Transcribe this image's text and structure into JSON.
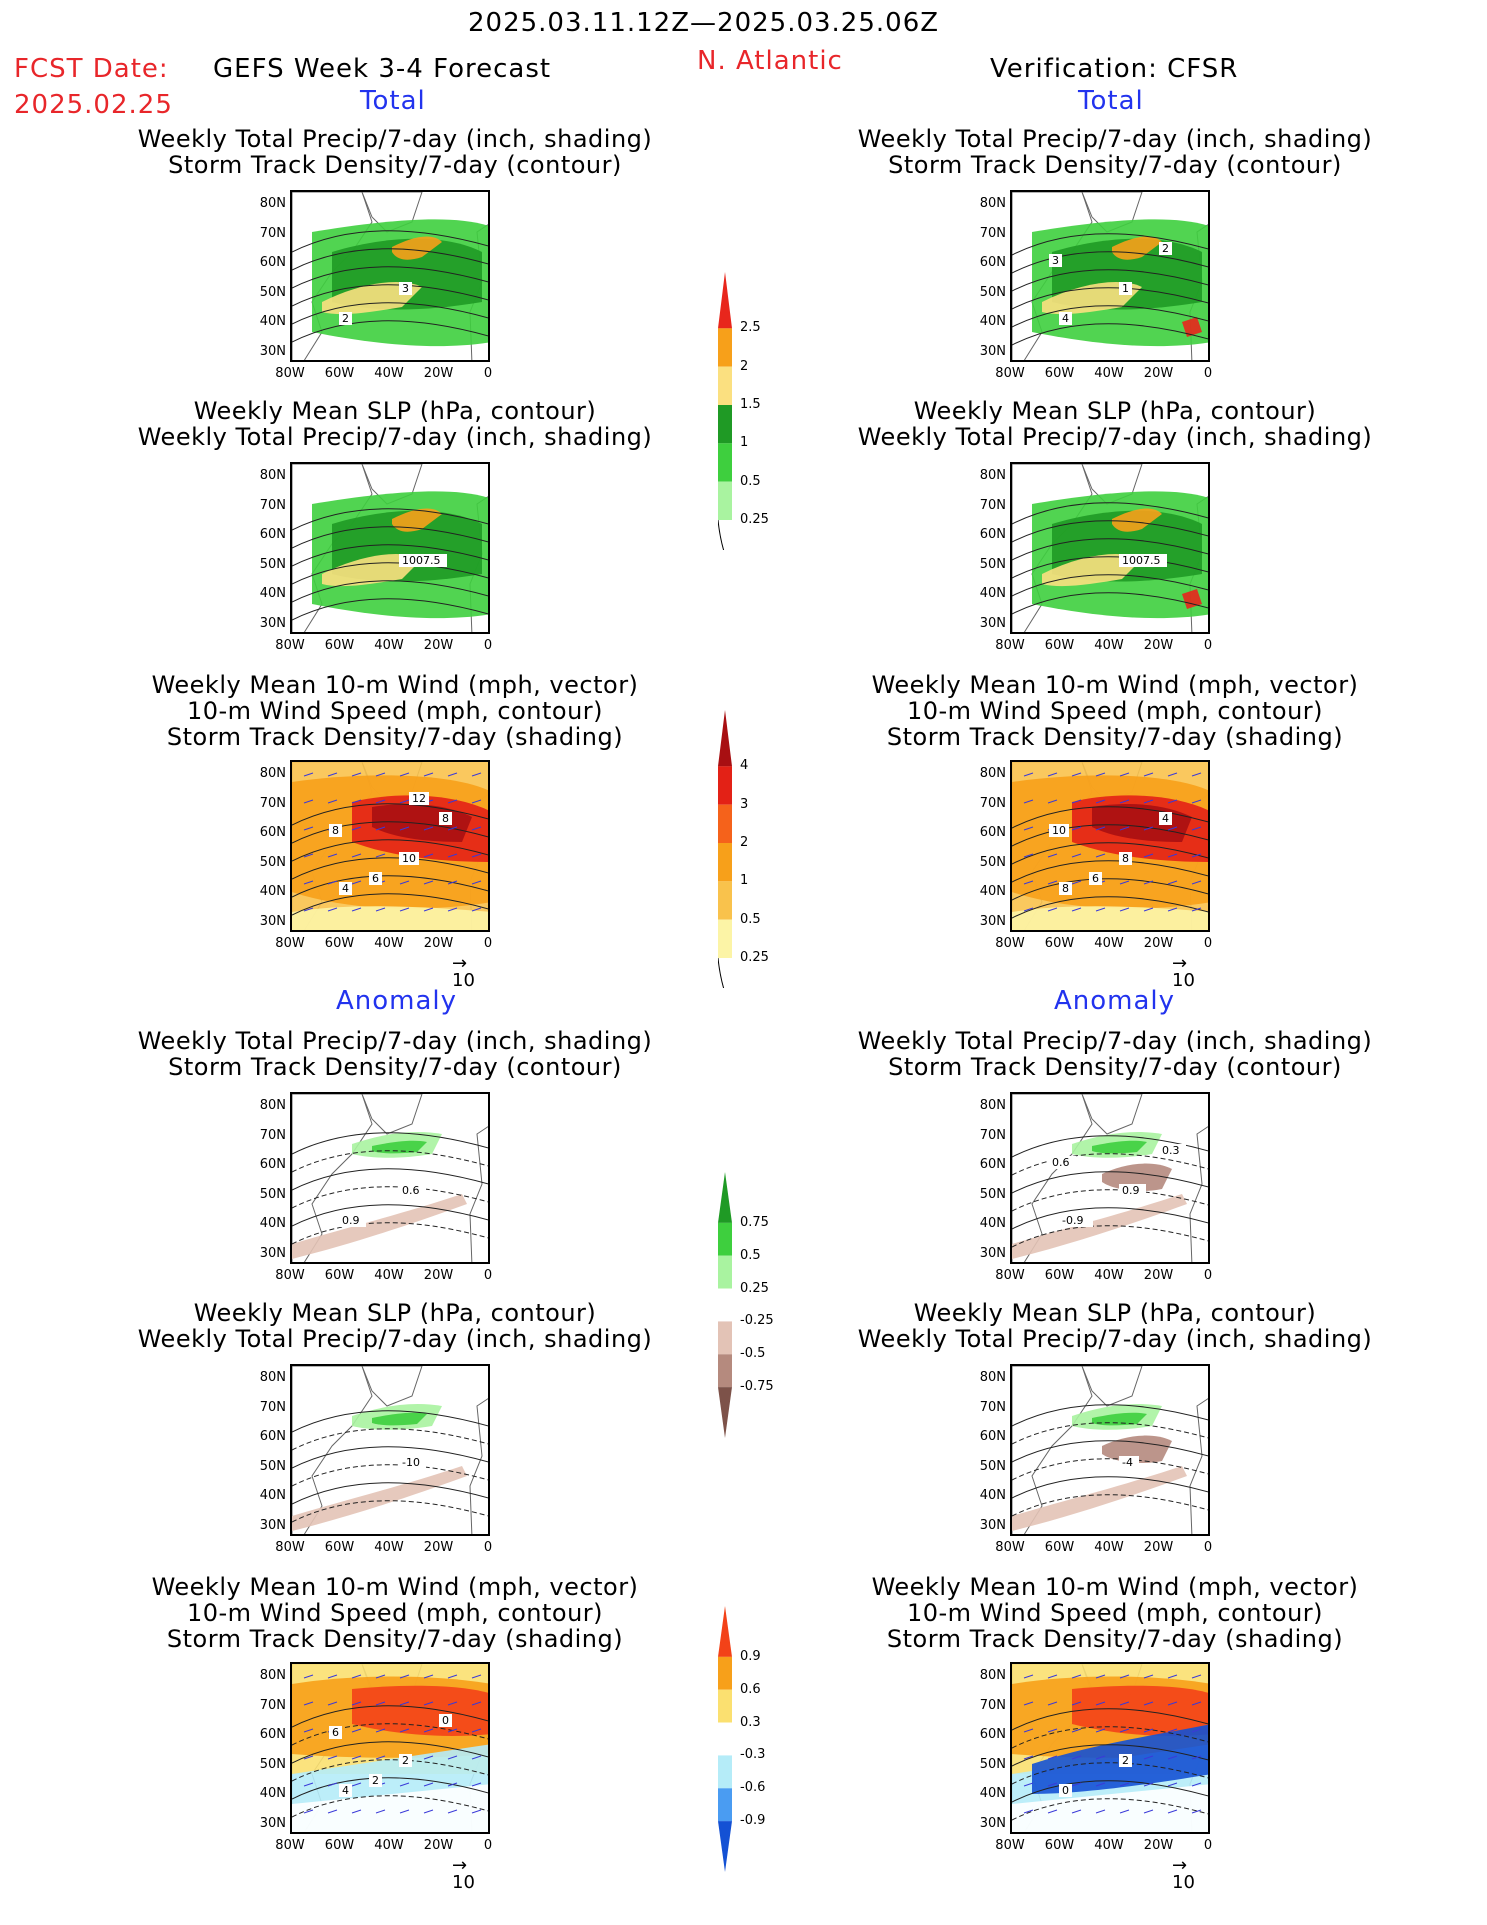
{
  "header": {
    "period": "2025.03.11.12Z—2025.03.25.06Z",
    "fcst_label": "FCST Date:",
    "fcst_date": "2025.02.25",
    "forecast_title": "GEFS Week 3-4 Forecast",
    "region": "N. Atlantic",
    "verification": "Verification: CFSR"
  },
  "sections": {
    "total": "Total",
    "anomaly": "Anomaly"
  },
  "titles": {
    "precip_track": [
      "Weekly Total Precip/7-day (inch, shading)",
      "Storm Track Density/7-day (contour)"
    ],
    "slp_precip": [
      "Weekly Mean SLP (hPa, contour)",
      "Weekly Total Precip/7-day (inch, shading)"
    ],
    "wind_track": [
      "Weekly Mean 10-m Wind (mph, vector)",
      "10-m Wind Speed (mph, contour)",
      "Storm Track Density/7-day (shading)"
    ]
  },
  "axes": {
    "lat": [
      "80N",
      "70N",
      "60N",
      "50N",
      "40N",
      "30N"
    ],
    "lon": [
      "80W",
      "60W",
      "40W",
      "20W",
      "0"
    ]
  },
  "vector_ref": "10",
  "colorbars": {
    "precip_total": {
      "labels": [
        "2.5",
        "2",
        "1.5",
        "1",
        "0.5",
        "0.25"
      ],
      "colors": [
        "#e8261c",
        "#f7a01a",
        "#fbe080",
        "#1f9a25",
        "#3ecf3e",
        "#a9f3a0"
      ]
    },
    "track_total": {
      "labels": [
        "4",
        "3",
        "2",
        "1",
        "0.5",
        "0.25"
      ],
      "colors": [
        "#a80f12",
        "#e32116",
        "#f5621b",
        "#f7a01a",
        "#f9c24c",
        "#fcf4a6"
      ]
    },
    "precip_anom": {
      "labels": [
        "0.75",
        "0.5",
        "0.25",
        "-0.25",
        "-0.5",
        "-0.75"
      ],
      "colors": [
        "#1f9a25",
        "#3ecf3e",
        "#a9f3a0",
        "#ffffff",
        "#e3c3b6",
        "#b58a7e",
        "#7d5249"
      ]
    },
    "track_anom": {
      "labels": [
        "0.9",
        "0.6",
        "0.3",
        "-0.3",
        "-0.6",
        "-0.9"
      ],
      "colors": [
        "#f34218",
        "#f7a01a",
        "#fbe070",
        "#ffffff",
        "#b5ecf8",
        "#4a9cf2",
        "#1451d4"
      ]
    }
  },
  "panels": [
    {
      "id": "fcst-total-precip",
      "labels": [
        "3",
        "2"
      ]
    },
    {
      "id": "ver-total-precip",
      "labels": [
        "1",
        "4",
        "3",
        "2"
      ]
    },
    {
      "id": "fcst-total-slp",
      "labels": [
        "1007.5"
      ]
    },
    {
      "id": "ver-total-slp",
      "labels": [
        "1007.5"
      ]
    },
    {
      "id": "fcst-total-wind",
      "labels": [
        "10",
        "4",
        "8",
        "8",
        "6",
        "12"
      ]
    },
    {
      "id": "ver-total-wind",
      "labels": [
        "8",
        "8",
        "10",
        "4",
        "6"
      ]
    },
    {
      "id": "fcst-anom-precip",
      "labels": [
        "0.6",
        "0.9"
      ]
    },
    {
      "id": "ver-anom-precip",
      "labels": [
        "0.9",
        "-0.9",
        "0.6",
        "0.3"
      ]
    },
    {
      "id": "fcst-anom-slp",
      "labels": [
        "-10"
      ]
    },
    {
      "id": "ver-anom-slp",
      "labels": [
        "-4"
      ]
    },
    {
      "id": "fcst-anom-wind",
      "labels": [
        "2",
        "4",
        "6",
        "0",
        "2"
      ]
    },
    {
      "id": "ver-anom-wind",
      "labels": [
        "2",
        "0"
      ]
    }
  ]
}
